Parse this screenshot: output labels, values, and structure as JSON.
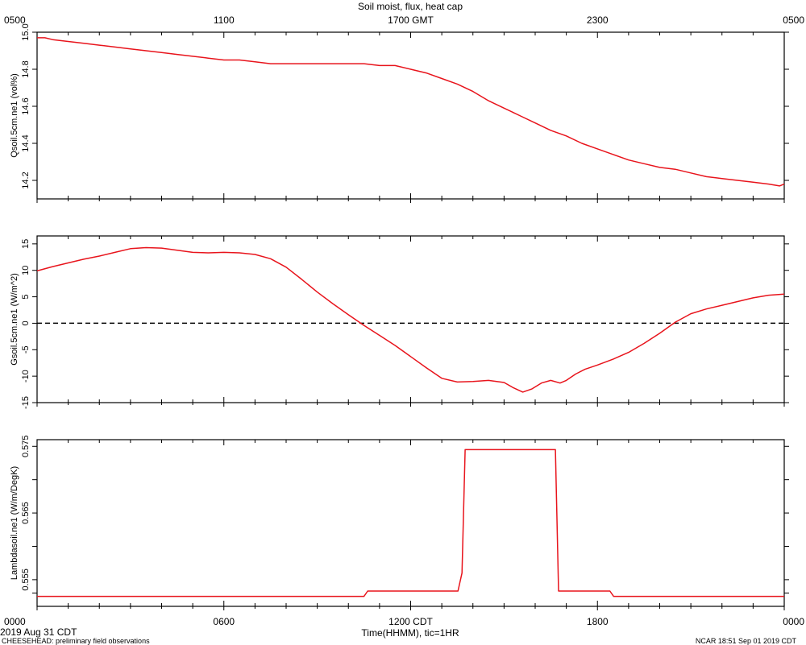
{
  "chart_data": {
    "type": "line",
    "title": "Soil moist, flux, heat cap",
    "top_axis": {
      "ticks": [
        "0500",
        "1100",
        "1700 GMT",
        "2300",
        "0500"
      ],
      "tick_hours": [
        0,
        6,
        12,
        18,
        24
      ]
    },
    "bottom_axis": {
      "label": "Time(HHMM), tic=1HR",
      "ticks": [
        "0000",
        "0600",
        "1200 CDT",
        "1800",
        "0000"
      ],
      "tick_hours": [
        0,
        6,
        12,
        18,
        24
      ],
      "xlim": [
        0,
        24
      ]
    },
    "start_label": "2019 Aug 31 CDT",
    "footer_left": "CHEESEHEAD: preliminary field observations",
    "footer_right": "NCAR 18:51 Sep 01 2019 CDT",
    "line_color": "#e8141c",
    "panels": [
      {
        "name": "qsoil",
        "ylabel": "Qsoil.5cm.ne1 (vol%)",
        "ylim": [
          14.1,
          15.0
        ],
        "yticks": [
          14.2,
          14.4,
          14.6,
          14.8,
          15.0
        ],
        "ytick_labels": [
          "14.2",
          "14.4",
          "14.6",
          "14.8",
          "15.0"
        ],
        "zero_line": false,
        "series": [
          {
            "x": [
              0,
              0.25,
              0.5,
              1,
              1.5,
              2,
              2.5,
              3,
              3.5,
              4,
              4.5,
              5,
              5.5,
              6,
              6.5,
              7,
              7.5,
              8,
              8.5,
              9,
              9.5,
              10,
              10.5,
              11,
              11.5,
              12,
              12.5,
              13,
              13.5,
              14,
              14.5,
              15,
              15.5,
              16,
              16.5,
              17,
              17.5,
              18,
              18.5,
              19,
              19.5,
              20,
              20.5,
              21,
              21.5,
              22,
              22.5,
              23,
              23.5,
              23.85,
              24
            ],
            "y": [
              14.97,
              14.97,
              14.96,
              14.95,
              14.94,
              14.93,
              14.92,
              14.91,
              14.9,
              14.89,
              14.88,
              14.87,
              14.86,
              14.85,
              14.85,
              14.84,
              14.83,
              14.83,
              14.83,
              14.83,
              14.83,
              14.83,
              14.83,
              14.82,
              14.82,
              14.8,
              14.78,
              14.75,
              14.72,
              14.68,
              14.63,
              14.59,
              14.55,
              14.51,
              14.47,
              14.44,
              14.4,
              14.37,
              14.34,
              14.31,
              14.29,
              14.27,
              14.26,
              14.24,
              14.22,
              14.21,
              14.2,
              14.19,
              14.18,
              14.17,
              14.18
            ]
          }
        ]
      },
      {
        "name": "gsoil",
        "ylabel": "Gsoil.5cm.ne1 (W/m^2)",
        "ylim": [
          -15,
          16.5
        ],
        "yticks": [
          -15,
          -10,
          -5,
          0,
          5,
          10,
          15
        ],
        "ytick_labels": [
          "-15",
          "-10",
          "-5",
          "0",
          "5",
          "10",
          "15"
        ],
        "zero_line": true,
        "series": [
          {
            "x": [
              0,
              0.5,
              1,
              1.5,
              2,
              2.5,
              3,
              3.5,
              4,
              4.5,
              5,
              5.5,
              6,
              6.5,
              7,
              7.5,
              8,
              8.5,
              9,
              9.5,
              10,
              10.5,
              11,
              11.5,
              12,
              12.5,
              13,
              13.5,
              14,
              14.5,
              15,
              15.3,
              15.6,
              15.9,
              16.2,
              16.5,
              16.8,
              17,
              17.3,
              17.6,
              18,
              18.5,
              19,
              19.5,
              20,
              20.5,
              21,
              21.5,
              22,
              22.5,
              23,
              23.5,
              24
            ],
            "y": [
              9.9,
              10.7,
              11.4,
              12.1,
              12.7,
              13.4,
              14.1,
              14.3,
              14.2,
              13.8,
              13.4,
              13.3,
              13.4,
              13.3,
              13.0,
              12.2,
              10.6,
              8.3,
              5.9,
              3.7,
              1.6,
              -0.4,
              -2.3,
              -4.2,
              -6.3,
              -8.4,
              -10.4,
              -11.1,
              -11.0,
              -10.8,
              -11.2,
              -12.2,
              -13.0,
              -12.4,
              -11.3,
              -10.8,
              -11.3,
              -10.8,
              -9.6,
              -8.7,
              -7.9,
              -6.8,
              -5.5,
              -3.8,
              -1.9,
              0.2,
              1.8,
              2.7,
              3.4,
              4.1,
              4.8,
              5.3,
              5.5
            ]
          }
        ]
      },
      {
        "name": "lambdasoil",
        "ylabel": "Lambdasoil.ne1 (W/m/DegK)",
        "ylim": [
          0.551,
          0.576
        ],
        "yticks": [
          0.553,
          0.555,
          0.56,
          0.565,
          0.57,
          0.575
        ],
        "ytick_labels": [
          "",
          "0.555",
          "",
          "0.565",
          "",
          "0.575"
        ],
        "zero_line": false,
        "series": [
          {
            "x": [
              0,
              10.5,
              10.62,
              13.52,
              13.65,
              13.75,
              16.65,
              16.75,
              18.4,
              18.52,
              24
            ],
            "y": [
              0.5525,
              0.5525,
              0.5533,
              0.5533,
              0.556,
              0.5745,
              0.5745,
              0.5533,
              0.5533,
              0.5525,
              0.5525
            ]
          }
        ]
      }
    ]
  }
}
